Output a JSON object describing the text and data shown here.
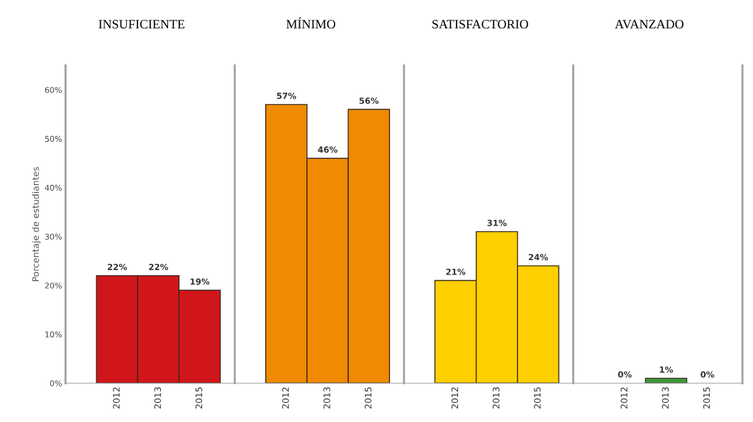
{
  "chart_data": [
    {
      "type": "bar",
      "title": "INSUFICIENTE",
      "ylabel": "Porcentaje de estudiantes",
      "categories": [
        "2012",
        "2013",
        "2015"
      ],
      "values": [
        22,
        22,
        19
      ],
      "value_labels": [
        "22%",
        "22%",
        "19%"
      ],
      "color": "#d0161b",
      "ylim": [
        0,
        65
      ],
      "yticks": [
        {
          "value": 0,
          "label": "0%"
        },
        {
          "value": 10,
          "label": "10%"
        },
        {
          "value": 20,
          "label": "20%"
        },
        {
          "value": 30,
          "label": "30%"
        },
        {
          "value": 40,
          "label": "40%"
        },
        {
          "value": 50,
          "label": "50%"
        },
        {
          "value": 60,
          "label": "60%"
        }
      ],
      "grid": false
    },
    {
      "type": "bar",
      "title": "MÍNIMO",
      "categories": [
        "2012",
        "2013",
        "2015"
      ],
      "values": [
        57,
        46,
        56
      ],
      "value_labels": [
        "57%",
        "46%",
        "56%"
      ],
      "color": "#f08a00",
      "ylim": [
        0,
        65
      ],
      "tick_labels": "x",
      "grid": false
    },
    {
      "type": "bar",
      "title": "SATISFACTORIO",
      "categories": [
        "2012",
        "2013",
        "2015"
      ],
      "values": [
        21,
        31,
        24
      ],
      "value_labels": [
        "21%",
        "31%",
        "24%"
      ],
      "color": "#ffd000",
      "ylim": [
        0,
        65
      ],
      "tick_labels": "x",
      "grid": false
    },
    {
      "type": "bar",
      "title": "AVANZADO",
      "categories": [
        "2012",
        "2013",
        "2015"
      ],
      "values": [
        0,
        1,
        0
      ],
      "value_labels": [
        "0%",
        "1%",
        "0%"
      ],
      "color": "#3a9a3a",
      "ylim": [
        0,
        65
      ],
      "tick_labels": "x",
      "grid": false
    }
  ]
}
